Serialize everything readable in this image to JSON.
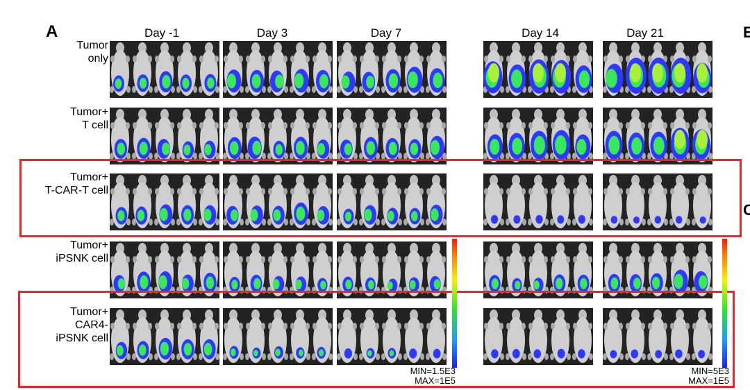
{
  "panel_label": "A",
  "edge_labels": [
    "E",
    "C"
  ],
  "columns": [
    "Day -1",
    "Day 3",
    "Day 7",
    "Day 14",
    "Day 21"
  ],
  "rows": [
    {
      "label": [
        "Tumor",
        "only"
      ]
    },
    {
      "label": [
        "Tumor+",
        "T cell"
      ]
    },
    {
      "label": [
        "Tumor+",
        "T-CAR-T cell"
      ]
    },
    {
      "label": [
        "Tumor+",
        "iPSNK cell"
      ]
    },
    {
      "label": [
        "Tumor+",
        "CAR4-",
        "iPSNK cell"
      ]
    }
  ],
  "signal_level": [
    [
      0.45,
      0.5,
      0.6,
      0.85,
      0.95
    ],
    [
      0.45,
      0.5,
      0.55,
      0.7,
      0.8
    ],
    [
      0.45,
      0.5,
      0.4,
      0.1,
      0.06
    ],
    [
      0.45,
      0.35,
      0.3,
      0.35,
      0.5
    ],
    [
      0.45,
      0.2,
      0.15,
      0.12,
      0.1
    ]
  ],
  "scale_left": {
    "min": "MIN=1.5E3",
    "max": "MAX=1E5"
  },
  "scale_right": {
    "min": "MIN=5E3",
    "max": "MAX=1E5"
  },
  "colors": {
    "highlight": "#e8262d",
    "low": "#2f38ff",
    "mid": "#38e85a",
    "high": "#a8f03a"
  }
}
